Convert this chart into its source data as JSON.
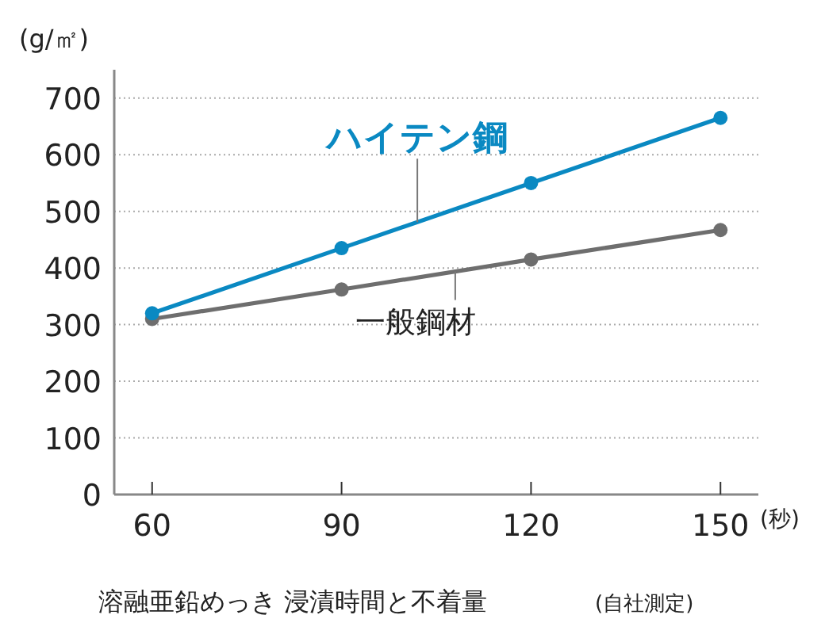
{
  "chart_data": {
    "type": "line",
    "title": "溶融亜鉛めっき 浸漬時間と不着量",
    "annotations": [
      "(自社測定)"
    ],
    "xlabel": "(秒)",
    "ylabel": "(g/㎡)",
    "x": [
      60,
      90,
      120,
      150
    ],
    "series": [
      {
        "name": "ハイテン鋼",
        "color": "#0a89c2",
        "values": [
          320,
          435,
          550,
          665
        ]
      },
      {
        "name": "一般鋼材",
        "color": "#6e6e6e",
        "values": [
          310,
          362,
          415,
          467
        ]
      }
    ],
    "xlim": [
      54,
      156
    ],
    "xticks": [
      60,
      90,
      120,
      150
    ],
    "ylim": [
      0,
      750
    ],
    "yticks": [
      0,
      100,
      200,
      300,
      400,
      500,
      600,
      700
    ],
    "grid": "y",
    "marker": "circle",
    "line_style": "solid"
  }
}
